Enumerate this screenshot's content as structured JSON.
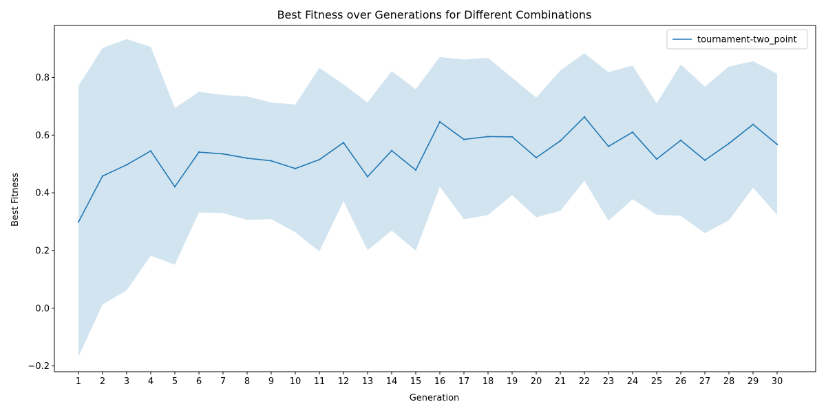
{
  "chart_data": {
    "type": "line",
    "title": "Best Fitness over Generations for Different Combinations",
    "xlabel": "Generation",
    "ylabel": "Best Fitness",
    "x": [
      1,
      2,
      3,
      4,
      5,
      6,
      7,
      8,
      9,
      10,
      11,
      12,
      13,
      14,
      15,
      16,
      17,
      18,
      19,
      20,
      21,
      22,
      23,
      24,
      25,
      26,
      27,
      28,
      29,
      30
    ],
    "xlim": [
      0,
      31.6
    ],
    "ylim": [
      -0.22,
      0.98
    ],
    "yticks": [
      -0.2,
      0.0,
      0.2,
      0.4,
      0.6,
      0.8
    ],
    "ytick_labels": [
      "−0.2",
      "0.0",
      "0.2",
      "0.4",
      "0.6",
      "0.8"
    ],
    "grid": false,
    "legend_position": "top-right",
    "series": [
      {
        "name": "tournament-two_point",
        "color": "#1f77b4",
        "band_color": "#1f77b4",
        "band_opacity": 0.2,
        "values": [
          0.299,
          0.458,
          0.497,
          0.545,
          0.421,
          0.541,
          0.535,
          0.52,
          0.511,
          0.484,
          0.515,
          0.574,
          0.456,
          0.546,
          0.479,
          0.646,
          0.585,
          0.595,
          0.594,
          0.522,
          0.58,
          0.663,
          0.561,
          0.61,
          0.517,
          0.582,
          0.513,
          0.571,
          0.637,
          0.568
        ],
        "upper": [
          0.771,
          0.902,
          0.933,
          0.906,
          0.694,
          0.75,
          0.739,
          0.734,
          0.713,
          0.706,
          0.833,
          0.776,
          0.713,
          0.822,
          0.759,
          0.871,
          0.862,
          0.868,
          0.799,
          0.73,
          0.824,
          0.884,
          0.818,
          0.841,
          0.71,
          0.845,
          0.768,
          0.838,
          0.856,
          0.813
        ],
        "lower": [
          -0.168,
          0.013,
          0.062,
          0.182,
          0.151,
          0.332,
          0.33,
          0.306,
          0.309,
          0.263,
          0.197,
          0.371,
          0.201,
          0.269,
          0.2,
          0.421,
          0.308,
          0.323,
          0.392,
          0.315,
          0.337,
          0.442,
          0.303,
          0.378,
          0.324,
          0.32,
          0.26,
          0.305,
          0.418,
          0.323
        ]
      }
    ]
  }
}
